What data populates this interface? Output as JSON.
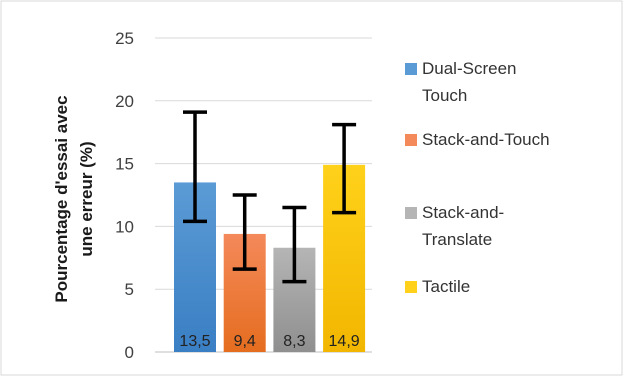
{
  "chart_data": {
    "type": "bar",
    "title": "",
    "xlabel": "",
    "ylabel_line1": "Pourcentage d'essai avec",
    "ylabel_line2": "une erreur (%)",
    "ylim": [
      0,
      25
    ],
    "yticks": [
      "0",
      "5",
      "10",
      "15",
      "20",
      "25"
    ],
    "grid": "horizontal",
    "legend_position": "right",
    "series": [
      {
        "legend_lines": [
          "Dual-Screen",
          "Touch"
        ],
        "value": 13.5,
        "label": "13,5",
        "error_low": 10.4,
        "error_high": 19.1,
        "color_top": "#5b9bd5",
        "color_bottom": "#3a7fc4"
      },
      {
        "legend_lines": [
          "Stack-and-Touch"
        ],
        "value": 9.4,
        "label": "9,4",
        "error_low": 6.6,
        "error_high": 12.5,
        "color_top": "#f4895a",
        "color_bottom": "#e56d1f"
      },
      {
        "legend_lines": [
          "Stack-and-",
          "Translate"
        ],
        "value": 8.3,
        "label": "8,3",
        "error_low": 5.6,
        "error_high": 11.5,
        "color_top": "#b5b5b5",
        "color_bottom": "#8f8f8f"
      },
      {
        "legend_lines": [
          "Tactile"
        ],
        "value": 14.9,
        "label": "14,9",
        "error_low": 11.1,
        "error_high": 18.1,
        "color_top": "#ffd11a",
        "color_bottom": "#f2b600"
      }
    ]
  }
}
